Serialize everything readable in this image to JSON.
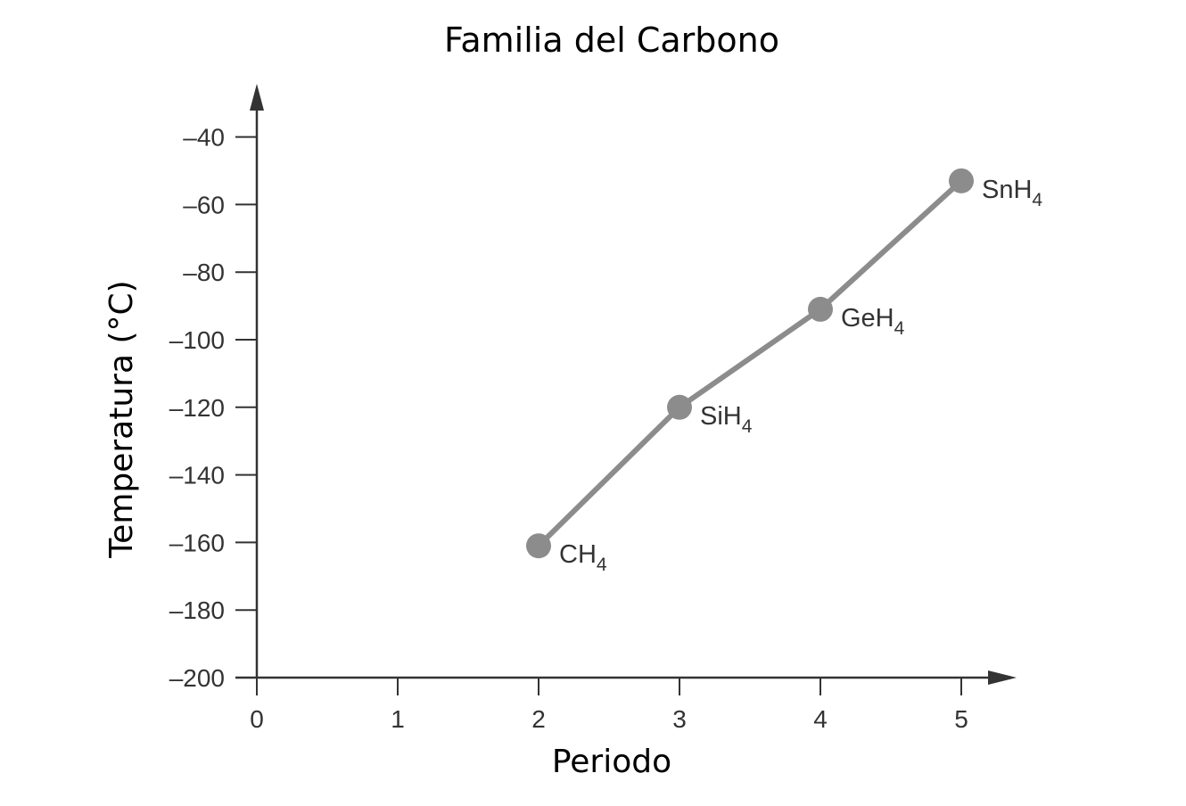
{
  "chart_data": {
    "type": "line",
    "title": "Familia del Carbono",
    "xlabel": "Periodo",
    "ylabel": "Temperatura (°C)",
    "xlim": [
      0,
      5
    ],
    "ylim": [
      -200,
      -40
    ],
    "x_ticks": [
      0,
      1,
      2,
      3,
      4,
      5
    ],
    "x_tick_labels": [
      "0",
      "1",
      "2",
      "3",
      "4",
      "5"
    ],
    "y_ticks": [
      -40,
      -60,
      -80,
      -100,
      -120,
      -140,
      -160,
      -180,
      -200
    ],
    "y_tick_labels": [
      "–40",
      "–60",
      "–80",
      "–100",
      "–120",
      "–140",
      "–160",
      "–180",
      "–200"
    ],
    "grid": false,
    "series": [
      {
        "color": "#8c8c8c",
        "points": [
          {
            "x": 2,
            "y": -161,
            "label": "CH",
            "sub": "4"
          },
          {
            "x": 3,
            "y": -120,
            "label": "SiH",
            "sub": "4"
          },
          {
            "x": 4,
            "y": -91,
            "label": "GeH",
            "sub": "4"
          },
          {
            "x": 5,
            "y": -53,
            "label": "SnH",
            "sub": "4"
          }
        ]
      }
    ],
    "axis_color": "#333333"
  }
}
